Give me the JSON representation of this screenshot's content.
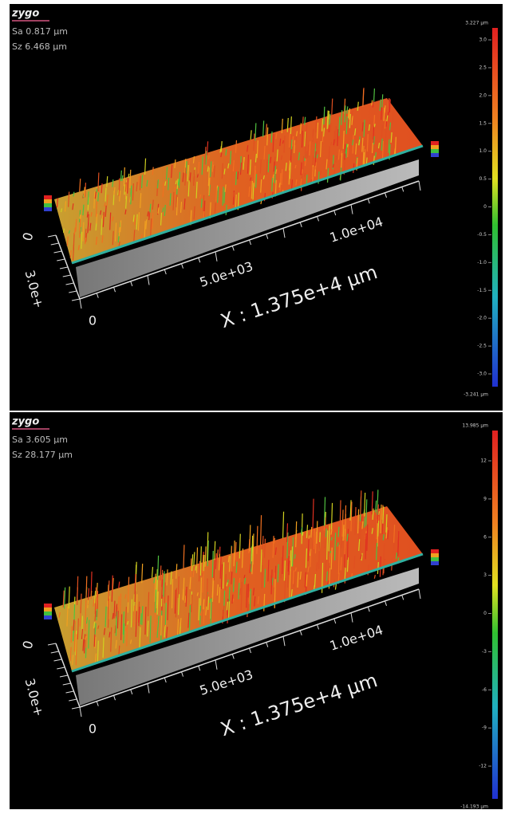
{
  "panels": [
    {
      "logo": "zygo",
      "sa": "Sa 0.817 µm",
      "sz": "Sz 6.468 µm",
      "colorbar": {
        "max_label": "3.227 µm",
        "ticks": [
          "3.0",
          "2.5",
          "2.0",
          "1.5",
          "1.0",
          "0.5",
          "0",
          "-0.5",
          "-1.0",
          "-1.5",
          "-2.0",
          "-2.5",
          "-3.0"
        ],
        "min_label": "-3.241 µm"
      },
      "y_axis_labels": [
        "0",
        "3.0e+"
      ],
      "x_axis_labels": [
        "0",
        "5.0e+03",
        "1.0e+04"
      ],
      "x_axis_title": "X : 1.375e+4 µm"
    },
    {
      "logo": "zygo",
      "sa": "Sa 3.605 µm",
      "sz": "Sz 28.177 µm",
      "colorbar": {
        "max_label": "13.985 µm",
        "ticks": [
          "12",
          "9",
          "6",
          "3",
          "0",
          "-3",
          "-6",
          "-9",
          "-12"
        ],
        "min_label": "-14.193 µm"
      },
      "y_axis_labels": [
        "0",
        "3.0e+"
      ],
      "x_axis_labels": [
        "0",
        "5.0e+03",
        "1.0e+04"
      ],
      "x_axis_title": "X : 1.375e+4 µm"
    }
  ]
}
